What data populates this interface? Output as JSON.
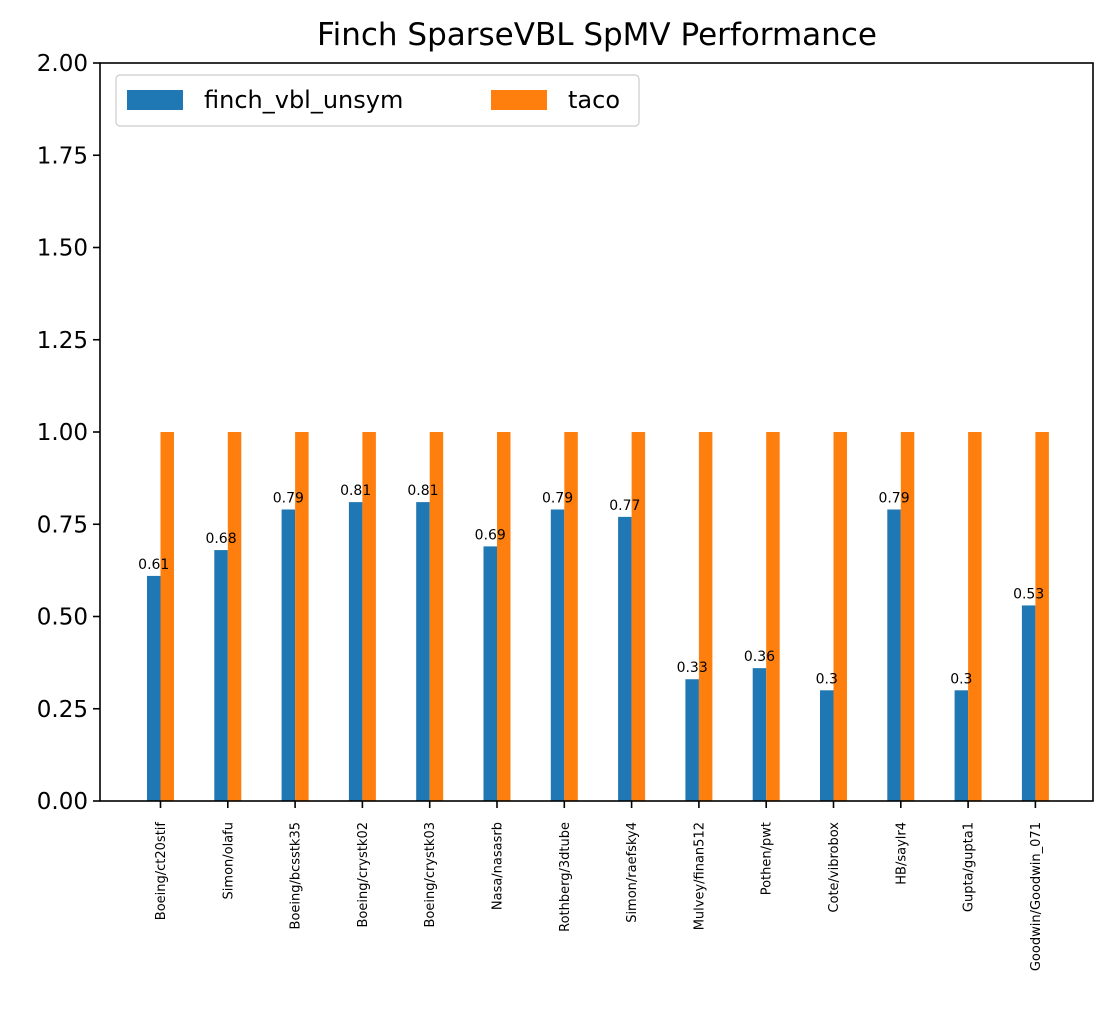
{
  "chart_data": {
    "type": "bar",
    "title": "Finch SparseVBL SpMV Performance",
    "xlabel": "",
    "ylabel": "",
    "ylim": [
      0,
      2.0
    ],
    "yticks": [
      "0.00",
      "0.25",
      "0.50",
      "0.75",
      "1.00",
      "1.25",
      "1.50",
      "1.75",
      "2.00"
    ],
    "grid": false,
    "legend_position": "top-left",
    "legend_columns": 2,
    "categories": [
      "Boeing/ct20stif",
      "Simon/olafu",
      "Boeing/bcsstk35",
      "Boeing/crystk02",
      "Boeing/crystk03",
      "Nasa/nasasrb",
      "Rothberg/3dtube",
      "Simon/raefsky4",
      "Mulvey/finan512",
      "Pothen/pwt",
      "Cote/vibrobox",
      "HB/saylr4",
      "Gupta/gupta1",
      "Goodwin/Goodwin_071"
    ],
    "series": [
      {
        "name": "finch_vbl_unsym",
        "color": "#1f77b4",
        "values": [
          0.61,
          0.68,
          0.79,
          0.81,
          0.81,
          0.69,
          0.79,
          0.77,
          0.33,
          0.36,
          0.3,
          0.79,
          0.3,
          0.53
        ],
        "data_labels": [
          "0.61",
          "0.68",
          "0.79",
          "0.81",
          "0.81",
          "0.69",
          "0.79",
          "0.77",
          "0.33",
          "0.36",
          "0.3",
          "0.79",
          "0.3",
          "0.53"
        ]
      },
      {
        "name": "taco",
        "color": "#ff7f0e",
        "values": [
          1,
          1,
          1,
          1,
          1,
          1,
          1,
          1,
          1,
          1,
          1,
          1,
          1,
          1
        ]
      }
    ]
  }
}
